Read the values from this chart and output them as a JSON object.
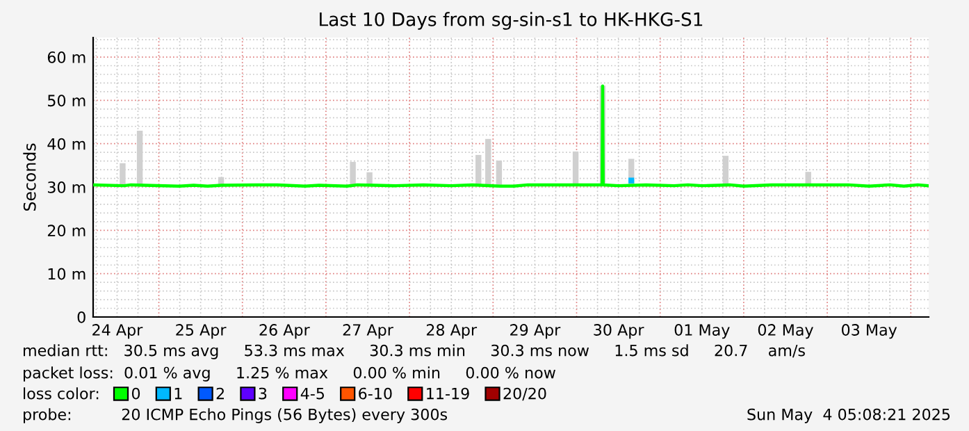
{
  "chart_data": {
    "type": "line",
    "title": "Last 10 Days from sg-sin-s1 to HK-HKG-S1",
    "ylabel": "Seconds",
    "xlim": [
      "2025-04-24T05:08",
      "2025-05-04T05:08"
    ],
    "xticks": [
      {
        "value": "2025-04-24T12:00",
        "label": "24 Apr"
      },
      {
        "value": "2025-04-25T12:00",
        "label": "25 Apr"
      },
      {
        "value": "2025-04-26T12:00",
        "label": "26 Apr"
      },
      {
        "value": "2025-04-27T12:00",
        "label": "27 Apr"
      },
      {
        "value": "2025-04-28T12:00",
        "label": "28 Apr"
      },
      {
        "value": "2025-04-29T12:00",
        "label": "29 Apr"
      },
      {
        "value": "2025-04-30T12:00",
        "label": "30 Apr"
      },
      {
        "value": "2025-05-01T12:00",
        "label": "01 May"
      },
      {
        "value": "2025-05-02T12:00",
        "label": "02 May"
      },
      {
        "value": "2025-05-03T12:00",
        "label": "03 May"
      }
    ],
    "ylim": [
      0,
      64.5
    ],
    "yticks": [
      0,
      {
        "value": 10,
        "label": "10 m"
      },
      {
        "value": 20,
        "label": "20 m"
      },
      {
        "value": 30,
        "label": "30 m"
      },
      {
        "value": 40,
        "label": "40 m"
      },
      {
        "value": 50,
        "label": "50 m"
      },
      {
        "value": 60,
        "label": "60 m"
      }
    ],
    "grid": true,
    "legend": "bottom left",
    "legend_title": "loss color:",
    "series": [
      {
        "type": "bar",
        "color": "#d0d0d0",
        "x": [
          "2025-04-24T13:36",
          "2025-04-24T18:32",
          "2025-04-25T17:53",
          "2025-04-27T07:44",
          "2025-04-27T12:31",
          "2025-04-28T19:48",
          "2025-04-28T22:36",
          "2025-04-29T01:43",
          "2025-04-29T23:43",
          "2025-04-30T07:29",
          "2025-04-30T15:43",
          "2025-05-01T18:48",
          "2025-05-02T18:32"
        ],
        "base": [
          30.5,
          30.5,
          30.5,
          30.5,
          30.5,
          30.5,
          30.5,
          30.5,
          30.5,
          30.5,
          30.5,
          30.5,
          30.5
        ],
        "values": [
          5.0,
          12.5,
          1.8,
          5.3,
          2.9,
          6.9,
          10.6,
          5.6,
          7.7,
          22.9,
          6.0,
          6.7,
          3.0
        ]
      },
      {
        "name": "0",
        "color": "#00ff00",
        "x": [
          "2025-04-24T05:08",
          "2025-04-24T14:00",
          "2025-04-24T16:00",
          "2025-04-25T06:00",
          "2025-04-25T10:00",
          "2025-04-25T14:00",
          "2025-04-25T18:00",
          "2025-04-26T04:00",
          "2025-04-26T10:00",
          "2025-04-26T18:00",
          "2025-04-26T22:00",
          "2025-04-27T06:00",
          "2025-04-27T09:00",
          "2025-04-27T14:00",
          "2025-04-27T20:00",
          "2025-04-28T04:00",
          "2025-04-28T12:00",
          "2025-04-28T18:00",
          "2025-04-29T02:00",
          "2025-04-29T06:00",
          "2025-04-29T10:00",
          "2025-04-29T16:00",
          "2025-04-30T07:20",
          "2025-04-30T07:29",
          "2025-04-30T07:38",
          "2025-04-30T12:00",
          "2025-04-30T20:00",
          "2025-05-01T04:00",
          "2025-05-01T08:00",
          "2025-05-01T12:00",
          "2025-05-01T20:00",
          "2025-05-02T00:00",
          "2025-05-02T08:00",
          "2025-05-02T16:00",
          "2025-05-02T22:00",
          "2025-05-03T06:00",
          "2025-05-03T12:00",
          "2025-05-03T18:00",
          "2025-05-03T22:00",
          "2025-05-04T02:00",
          "2025-05-04T05:08"
        ],
        "values": [
          30.5,
          30.3,
          30.5,
          30.2,
          30.4,
          30.2,
          30.4,
          30.5,
          30.5,
          30.2,
          30.4,
          30.2,
          30.5,
          30.4,
          30.3,
          30.5,
          30.3,
          30.5,
          30.2,
          30.2,
          30.5,
          30.5,
          30.5,
          53.3,
          30.5,
          30.3,
          30.5,
          30.3,
          30.5,
          30.3,
          30.5,
          30.2,
          30.5,
          30.5,
          30.5,
          30.5,
          30.2,
          30.5,
          30.2,
          30.5,
          30.3
        ]
      },
      {
        "name": "1",
        "color": "#00b8ff",
        "type": "scatter",
        "marker": "square",
        "x": [
          "2025-04-30T15:43"
        ],
        "values": [
          31.5
        ]
      },
      {
        "name": "2",
        "color": "#0059ff"
      },
      {
        "name": "3",
        "color": "#5e00ff"
      },
      {
        "name": "4-5",
        "color": "#ff00ff"
      },
      {
        "name": "6-10",
        "color": "#ff5500"
      },
      {
        "name": "11-19",
        "color": "#ff0000"
      },
      {
        "name": "20/20",
        "color": "#a10000"
      }
    ],
    "annotations": [
      "median rtt:   30.5 ms avg     53.3 ms max     30.3 ms min     30.3 ms now     1.5 ms sd     20.7    am/s",
      "packet loss:  0.01 % avg     1.25 % max     0.00 % min     0.00 % now",
      "probe:          20 ICMP Echo Pings (56 Bytes) every 300s",
      "Sun May  4 05:08:21 2025"
    ]
  }
}
